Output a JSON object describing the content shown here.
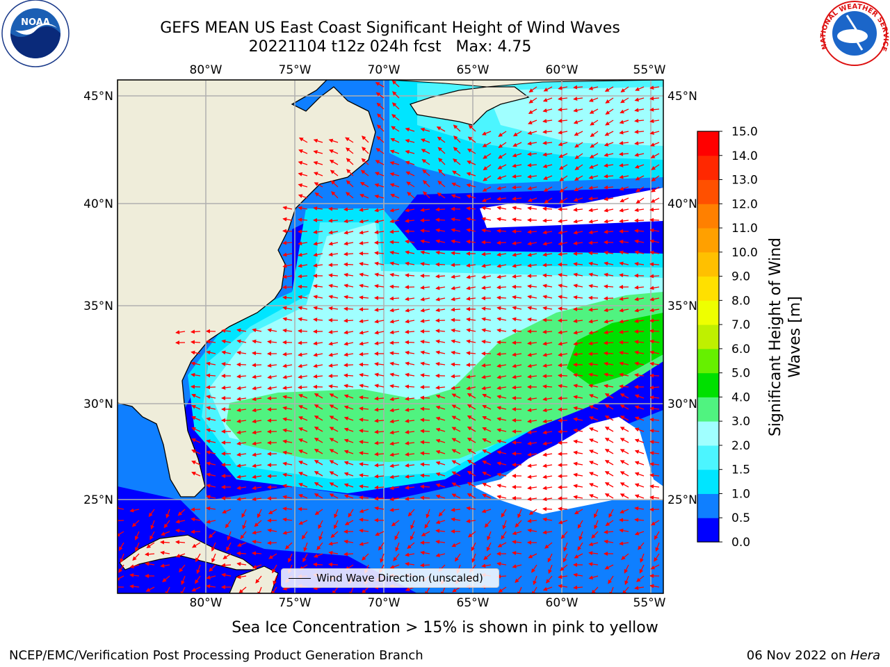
{
  "title": {
    "line1": "GEFS MEAN US East Coast Significant Height of Wind Waves",
    "line2": "20221104 t12z 024h fcst   Max: 4.75"
  },
  "logos": {
    "noaa": {
      "name": "noaa-logo",
      "text": "NOAA"
    },
    "nws": {
      "name": "national-weather-service-logo",
      "text": "NATIONAL WEATHER SERVICE"
    }
  },
  "map": {
    "lon_labels": [
      "80°W",
      "75°W",
      "70°W",
      "65°W",
      "60°W",
      "55°W"
    ],
    "lat_labels": [
      "45°N",
      "40°N",
      "35°N",
      "30°N",
      "25°N"
    ],
    "legend_label": "Wind Wave Direction (unscaled)",
    "colors": {
      "land": "#efedda",
      "coast": "#000000",
      "grid": "#b0b0b0",
      "arrows": "#ff0000"
    }
  },
  "colorbar": {
    "label_line1": "Significant Height of Wind",
    "label_line2": "Waves [m]",
    "ticks": [
      "0.0",
      "0.5",
      "1.0",
      "1.5",
      "2.0",
      "3.0",
      "4.0",
      "5.0",
      "6.0",
      "7.0",
      "8.0",
      "9.0",
      "10.0",
      "11.0",
      "12.0",
      "13.0",
      "14.0",
      "15.0"
    ],
    "colors": [
      "#0000ff",
      "#0f7fff",
      "#00e5ff",
      "#4cf5ff",
      "#a0ffff",
      "#50f380",
      "#00e000",
      "#66f000",
      "#bff000",
      "#eeff00",
      "#ffe000",
      "#ffc000",
      "#ffa000",
      "#ff8000",
      "#ff5000",
      "#ff2800",
      "#ff0000"
    ]
  },
  "notes": {
    "sea_ice": "Sea Ice Concentration > 15% is shown in pink to yellow",
    "footer_left": "NCEP/EMC/Verification Post Processing Product Generation Branch",
    "footer_right_date": "06 Nov 2022 on ",
    "footer_right_host": "Hera"
  }
}
